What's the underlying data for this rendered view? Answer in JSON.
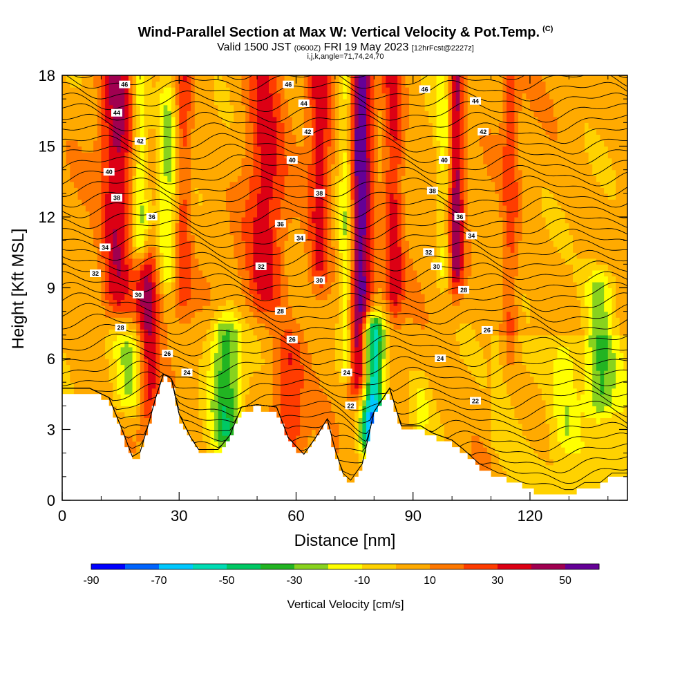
{
  "header": {
    "title": "Wind-Parallel Section at Max W: Vertical Velocity & Pot.Temp.",
    "title_mark": "(C)",
    "valid_prefix": "Valid 1500 JST",
    "valid_z": "(0600Z)",
    "valid_date": "FRI 19 May 2023",
    "forecast": "[12hrFcst@2227z]",
    "indices": "i,j,k,angle=71,74,24,70"
  },
  "chart_data": {
    "type": "heatmap",
    "xlabel": "Distance [nm]",
    "ylabel": "Height [Kft MSL]",
    "xlim": [
      0,
      145
    ],
    "ylim": [
      0,
      18
    ],
    "x_ticks": [
      "0",
      "30",
      "60",
      "90",
      "120"
    ],
    "y_ticks": [
      "0",
      "3",
      "6",
      "9",
      "12",
      "15",
      "18"
    ],
    "colorbar": {
      "label": "Vertical Velocity [cm/s]",
      "tick_labels": [
        "-90",
        "-70",
        "-50",
        "-30",
        "-10",
        "10",
        "30",
        "50"
      ],
      "bins": [
        -90,
        -80,
        -70,
        -60,
        -50,
        -40,
        -30,
        -20,
        -10,
        0,
        10,
        20,
        30,
        40,
        50,
        60
      ],
      "colors": [
        "#0000ff",
        "#0064ff",
        "#00c8ff",
        "#00dcb4",
        "#00c864",
        "#22b422",
        "#88d21e",
        "#ffff00",
        "#ffd200",
        "#ffaa00",
        "#ff7800",
        "#ff3c00",
        "#dc0014",
        "#a00050",
        "#640096"
      ]
    },
    "terrain": [
      [
        0,
        4.6
      ],
      [
        7,
        4.6
      ],
      [
        12,
        4.2
      ],
      [
        15,
        3.0
      ],
      [
        18,
        1.7
      ],
      [
        20,
        1.9
      ],
      [
        22,
        3.0
      ],
      [
        24,
        4.2
      ],
      [
        26,
        5.2
      ],
      [
        28,
        5.0
      ],
      [
        30,
        3.5
      ],
      [
        33,
        2.5
      ],
      [
        35,
        2.0
      ],
      [
        40,
        2.0
      ],
      [
        43,
        2.6
      ],
      [
        46,
        3.8
      ],
      [
        50,
        3.9
      ],
      [
        55,
        3.8
      ],
      [
        58,
        2.5
      ],
      [
        62,
        1.8
      ],
      [
        65,
        2.5
      ],
      [
        68,
        3.3
      ],
      [
        70,
        2.0
      ],
      [
        72,
        1.0
      ],
      [
        74,
        0.7
      ],
      [
        77,
        1.4
      ],
      [
        80,
        3.6
      ],
      [
        84,
        4.6
      ],
      [
        87,
        3.0
      ],
      [
        92,
        3.0
      ],
      [
        95,
        2.7
      ],
      [
        100,
        2.4
      ],
      [
        103,
        2.0
      ],
      [
        107,
        1.4
      ],
      [
        112,
        1.0
      ],
      [
        118,
        0.6
      ],
      [
        122,
        0.3
      ],
      [
        131,
        0.3
      ],
      [
        134,
        0.6
      ],
      [
        138,
        0.6
      ],
      [
        141,
        1.0
      ],
      [
        145,
        1.0
      ]
    ],
    "theta_lines": [
      {
        "label": "22",
        "x": 74,
        "y": 4.0
      },
      {
        "label": "22",
        "x": 106,
        "y": 4.2
      },
      {
        "label": "24",
        "x": 32,
        "y": 5.4
      },
      {
        "label": "24",
        "x": 73,
        "y": 5.4
      },
      {
        "label": "24",
        "x": 97,
        "y": 6.0
      },
      {
        "label": "26",
        "x": 27,
        "y": 6.2
      },
      {
        "label": "26",
        "x": 59,
        "y": 6.8
      },
      {
        "label": "26",
        "x": 109,
        "y": 7.2
      },
      {
        "label": "28",
        "x": 15,
        "y": 7.3
      },
      {
        "label": "28",
        "x": 56,
        "y": 8.0
      },
      {
        "label": "28",
        "x": 103,
        "y": 8.9
      },
      {
        "label": "30",
        "x": 19.5,
        "y": 8.7
      },
      {
        "label": "30",
        "x": 66,
        "y": 9.3
      },
      {
        "label": "30",
        "x": 96,
        "y": 9.9
      },
      {
        "label": "32",
        "x": 8.5,
        "y": 9.6
      },
      {
        "label": "32",
        "x": 51,
        "y": 9.9
      },
      {
        "label": "32",
        "x": 94,
        "y": 10.5
      },
      {
        "label": "34",
        "x": 11,
        "y": 10.7
      },
      {
        "label": "34",
        "x": 61,
        "y": 11.1
      },
      {
        "label": "34",
        "x": 105,
        "y": 11.2
      },
      {
        "label": "36",
        "x": 56,
        "y": 11.7
      },
      {
        "label": "36",
        "x": 23,
        "y": 12.0
      },
      {
        "label": "36",
        "x": 102,
        "y": 12.0
      },
      {
        "label": "38",
        "x": 14,
        "y": 12.8
      },
      {
        "label": "38",
        "x": 66,
        "y": 13.0
      },
      {
        "label": "38",
        "x": 95,
        "y": 13.1
      },
      {
        "label": "40",
        "x": 12,
        "y": 13.9
      },
      {
        "label": "40",
        "x": 59,
        "y": 14.4
      },
      {
        "label": "40",
        "x": 98,
        "y": 14.4
      },
      {
        "label": "42",
        "x": 20,
        "y": 15.2
      },
      {
        "label": "42",
        "x": 63,
        "y": 15.6
      },
      {
        "label": "42",
        "x": 108,
        "y": 15.6
      },
      {
        "label": "44",
        "x": 14,
        "y": 16.4
      },
      {
        "label": "44",
        "x": 62,
        "y": 16.8
      },
      {
        "label": "44",
        "x": 106,
        "y": 16.9
      },
      {
        "label": "46",
        "x": 16,
        "y": 17.6
      },
      {
        "label": "46",
        "x": 58,
        "y": 17.6
      },
      {
        "label": "46",
        "x": 93,
        "y": 17.4
      }
    ],
    "updrafts": [
      {
        "x": 14,
        "w": 4,
        "y0": 9.0,
        "y1": 18,
        "peak": 35
      },
      {
        "x": 22,
        "w": 3,
        "y0": 4.5,
        "y1": 9.5,
        "peak": 40
      },
      {
        "x": 31,
        "w": 2,
        "y0": 9.0,
        "y1": 18,
        "peak": 22
      },
      {
        "x": 52,
        "w": 5,
        "y0": 9.0,
        "y1": 18,
        "peak": 28
      },
      {
        "x": 58,
        "w": 4,
        "y0": 3.0,
        "y1": 6.0,
        "peak": 25
      },
      {
        "x": 66,
        "w": 3,
        "y0": 10.0,
        "y1": 18,
        "peak": 28
      },
      {
        "x": 76.5,
        "w": 3,
        "y0": 5.5,
        "y1": 18,
        "peak": 55
      },
      {
        "x": 85,
        "w": 2.5,
        "y0": 9.0,
        "y1": 18,
        "peak": 30
      },
      {
        "x": 101,
        "w": 2,
        "y0": 10.0,
        "y1": 18,
        "peak": 40
      },
      {
        "x": 115,
        "w": 2,
        "y0": 7.0,
        "y1": 18,
        "peak": 20
      }
    ],
    "downdrafts": [
      {
        "x": 20,
        "w": 2,
        "y0": 11.0,
        "y1": 18,
        "peak": -25
      },
      {
        "x": 18,
        "w": 5,
        "y0": 4.5,
        "y1": 6.5,
        "peak": -30
      },
      {
        "x": 27,
        "w": 2.5,
        "y0": 10.0,
        "y1": 17,
        "peak": -25
      },
      {
        "x": 42,
        "w": 4,
        "y0": 3.0,
        "y1": 7.0,
        "peak": -40
      },
      {
        "x": 73,
        "w": 2,
        "y0": 6.0,
        "y1": 18,
        "peak": -30
      },
      {
        "x": 79.5,
        "w": 3,
        "y0": 3.0,
        "y1": 7.0,
        "peak": -80
      },
      {
        "x": 92,
        "w": 2,
        "y0": 2.5,
        "y1": 4.0,
        "peak": -15
      },
      {
        "x": 98,
        "w": 2,
        "y0": 10.0,
        "y1": 18,
        "peak": -20
      },
      {
        "x": 138,
        "w": 4,
        "y0": 4.5,
        "y1": 9.0,
        "peak": -30
      },
      {
        "x": 129,
        "w": 3,
        "y0": 3.0,
        "y1": 6.0,
        "peak": -15
      }
    ]
  }
}
